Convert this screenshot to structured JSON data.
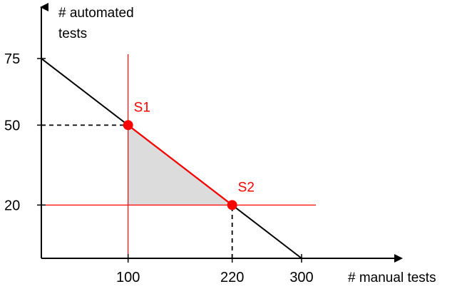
{
  "chart_data": {
    "type": "line",
    "xlabel": "# manual tests",
    "ylabel": "# automated tests",
    "x_ticks": [
      100,
      220,
      300
    ],
    "y_ticks": [
      75,
      50,
      20
    ],
    "constraint_line": {
      "points": [
        [
          0,
          75
        ],
        [
          300,
          0
        ]
      ]
    },
    "shaded_region": [
      [
        100,
        50
      ],
      [
        220,
        20
      ],
      [
        100,
        20
      ]
    ],
    "points": [
      {
        "name": "S1",
        "x": 100,
        "y": 50
      },
      {
        "name": "S2",
        "x": 220,
        "y": 20
      }
    ],
    "red_guides": {
      "vertical_x": 100,
      "horizontal_y": 20
    },
    "dashed_guides": [
      {
        "from": [
          0,
          50
        ],
        "to": [
          100,
          50
        ]
      },
      {
        "from": [
          220,
          0
        ],
        "to": [
          220,
          20
        ]
      }
    ],
    "colors": {
      "axis": "#000000",
      "constraint": "#000000",
      "highlight": "#ff0000",
      "shade": "#dcdcdc"
    }
  }
}
